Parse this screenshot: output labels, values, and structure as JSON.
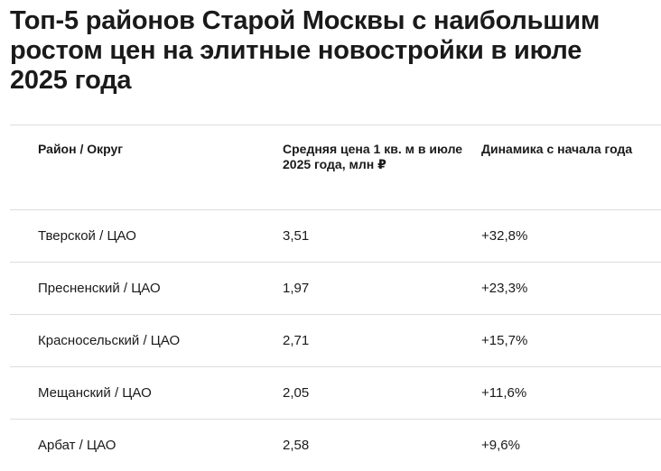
{
  "header": {
    "title": "Топ-5 районов Старой Москвы с наибольшим ростом цен на элитные новостройки в июле 2025 года"
  },
  "table": {
    "columns": [
      "Район / Округ",
      "Средняя цена 1 кв. м в июле 2025 года, млн ₽",
      "Динамика с начала года"
    ],
    "rows": [
      [
        "Тверской / ЦАО",
        "3,51",
        "+32,8%"
      ],
      [
        "Пресненский / ЦАО",
        "1,97",
        "+23,3%"
      ],
      [
        "Красносельский / ЦАО",
        "2,71",
        "+15,7%"
      ],
      [
        "Мещанский / ЦАО",
        "2,05",
        "+11,6%"
      ],
      [
        "Арбат / ЦАО",
        "2,58",
        "+9,6%"
      ]
    ]
  }
}
